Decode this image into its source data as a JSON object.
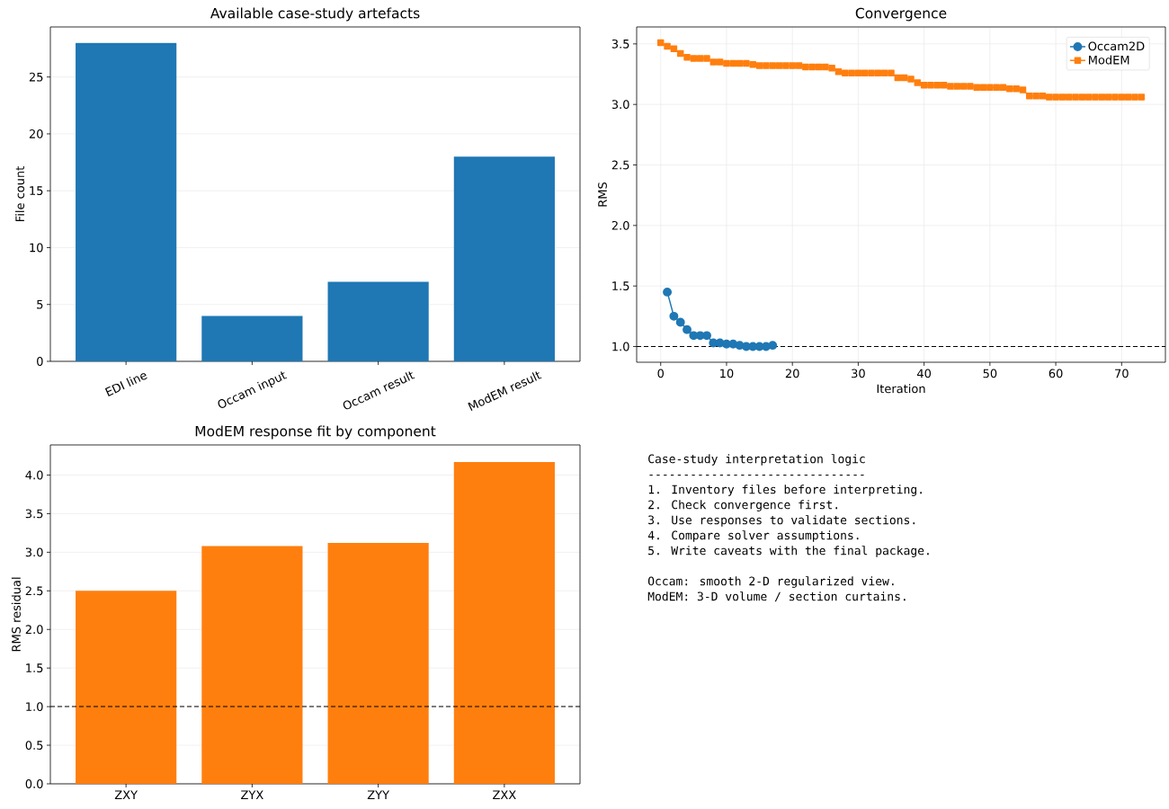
{
  "chart_data": [
    {
      "type": "bar",
      "title": "Available case-study artefacts",
      "ylabel": "File count",
      "categories": [
        "EDI line",
        "Occam input",
        "Occam result",
        "ModEM result"
      ],
      "values": [
        28,
        4,
        7,
        18
      ],
      "color": "#1f77b4",
      "ylim": [
        0,
        29.4
      ],
      "yticks": [
        0,
        5,
        10,
        15,
        20,
        25
      ],
      "grid": "y"
    },
    {
      "type": "line",
      "title": "Convergence",
      "xlabel": "Iteration",
      "ylabel": "RMS",
      "xlim": [
        -3.65,
        76.65
      ],
      "ylim": [
        0.87,
        3.64
      ],
      "xticks": [
        0,
        10,
        20,
        30,
        40,
        50,
        60,
        70
      ],
      "yticks": [
        {
          "value": 1,
          "label": "1.0"
        },
        1.5,
        {
          "value": 2,
          "label": "2.0"
        },
        2.5,
        {
          "value": 3,
          "label": "3.0"
        },
        3.5
      ],
      "grid": true,
      "legend": "top right",
      "series": [
        {
          "name": "Occam2D",
          "color": "#1f77b4",
          "marker": "circle",
          "x": [
            1,
            2,
            3,
            4,
            5,
            6,
            7,
            8,
            9,
            10,
            11,
            12,
            13,
            14,
            15,
            16,
            17
          ],
          "values": [
            1.45,
            1.25,
            1.2,
            1.14,
            1.09,
            1.09,
            1.09,
            1.03,
            1.03,
            1.02,
            1.02,
            1.01,
            1.0,
            1.0,
            1.0,
            1.0,
            1.01
          ]
        },
        {
          "name": "ModEM",
          "color": "#ff7f0e",
          "marker": "square",
          "x": [
            0,
            1,
            2,
            3,
            4,
            5,
            6,
            7,
            8,
            9,
            10,
            11,
            12,
            13,
            14,
            15,
            16,
            17,
            18,
            19,
            20,
            21,
            22,
            23,
            24,
            25,
            26,
            27,
            28,
            29,
            30,
            31,
            32,
            33,
            34,
            35,
            36,
            37,
            38,
            39,
            40,
            41,
            42,
            43,
            44,
            45,
            46,
            47,
            48,
            49,
            50,
            51,
            52,
            53,
            54,
            55,
            56,
            57,
            58,
            59,
            60,
            61,
            62,
            63,
            64,
            65,
            66,
            67,
            68,
            69,
            70,
            71,
            72,
            73
          ],
          "values": [
            3.51,
            3.48,
            3.46,
            3.42,
            3.39,
            3.38,
            3.38,
            3.38,
            3.35,
            3.35,
            3.34,
            3.34,
            3.34,
            3.34,
            3.33,
            3.32,
            3.32,
            3.32,
            3.32,
            3.32,
            3.32,
            3.32,
            3.31,
            3.31,
            3.31,
            3.31,
            3.3,
            3.27,
            3.26,
            3.26,
            3.26,
            3.26,
            3.26,
            3.26,
            3.26,
            3.26,
            3.22,
            3.22,
            3.21,
            3.18,
            3.16,
            3.16,
            3.16,
            3.16,
            3.15,
            3.15,
            3.15,
            3.15,
            3.14,
            3.14,
            3.14,
            3.14,
            3.14,
            3.13,
            3.13,
            3.12,
            3.07,
            3.07,
            3.07,
            3.06,
            3.06,
            3.06,
            3.06,
            3.06,
            3.06,
            3.06,
            3.06,
            3.06,
            3.06,
            3.06,
            3.06,
            3.06,
            3.06,
            3.06
          ]
        }
      ],
      "ref_lines": [
        {
          "axis": "y",
          "value": 1.0,
          "color": "#000000",
          "line_style": "dashed"
        }
      ]
    },
    {
      "type": "bar",
      "title": "ModEM response fit by component",
      "ylabel": "RMS residual",
      "categories": [
        "ZXY",
        "ZYX",
        "ZYY",
        "ZXX"
      ],
      "values": [
        2.5,
        3.08,
        3.12,
        4.17
      ],
      "color": "#ff7f0e",
      "ylim": [
        0,
        4.39
      ],
      "yticks": [
        {
          "value": 0,
          "label": "0.0"
        },
        0.5,
        {
          "value": 1,
          "label": "1.0"
        },
        1.5,
        {
          "value": 2,
          "label": "2.0"
        },
        2.5,
        {
          "value": 3,
          "label": "3.0"
        },
        3.5,
        {
          "value": 4,
          "label": "4.0"
        }
      ],
      "grid": "y",
      "ref_lines": [
        {
          "axis": "y",
          "value": 1.0,
          "color": "#000000",
          "line_style": "dashed"
        }
      ]
    },
    {
      "type": "other",
      "title": "Case-study interpretation logic",
      "annotations": [
        "-------------------------------",
        "1. Inventory files before interpreting.",
        "2. Check convergence first.",
        "3. Use responses to validate sections.",
        "4. Compare solver assumptions.",
        "5. Write caveats with the final package.",
        "Occam: smooth 2-D regularized view.",
        "ModEM: 3-D volume / section curtains."
      ]
    }
  ]
}
